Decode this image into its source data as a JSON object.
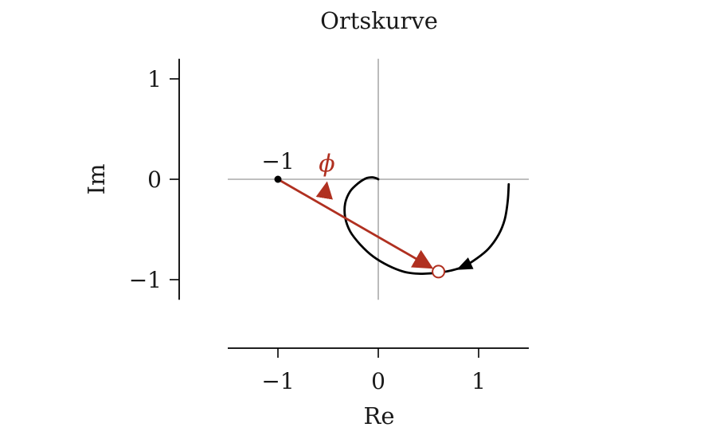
{
  "chart_data": {
    "type": "line",
    "title": "Ortskurve",
    "xlabel": "Re",
    "ylabel": "Im",
    "xlim": [
      -1.5,
      1.5
    ],
    "ylim": [
      -1.2,
      1.2
    ],
    "xticks": [
      -1,
      0,
      1
    ],
    "xtick_labels": [
      "−1",
      "0",
      "1"
    ],
    "yticks": [
      -1,
      0,
      1
    ],
    "ytick_labels": [
      "−1",
      "0",
      "1"
    ],
    "grid": false,
    "series": [
      {
        "curve": "nyquist",
        "x": [
          1.3,
          1.29,
          1.26,
          1.2,
          1.1,
          0.98,
          0.85,
          0.72,
          0.6,
          0.48,
          0.38,
          0.25,
          0.1,
          -0.05,
          -0.18,
          -0.28,
          -0.33,
          -0.33,
          -0.28,
          -0.2,
          -0.12,
          -0.06,
          -0.02,
          0.0
        ],
        "y": [
          -0.05,
          -0.22,
          -0.4,
          -0.55,
          -0.69,
          -0.79,
          -0.87,
          -0.91,
          -0.93,
          -0.94,
          -0.94,
          -0.92,
          -0.86,
          -0.77,
          -0.65,
          -0.52,
          -0.38,
          -0.24,
          -0.12,
          -0.04,
          0.01,
          0.02,
          0.01,
          0.0
        ],
        "color": "#000000",
        "direction_arrow_at_index": 6
      }
    ],
    "annotations": [
      {
        "point": [
          -1,
          0
        ],
        "label": "−1",
        "color": "#000000"
      },
      {
        "phasor_from": [
          -1,
          0
        ],
        "phasor_to": [
          0.6,
          -0.92
        ],
        "color": "#b03020",
        "marker": "open-circle"
      },
      {
        "angle_label": "ϕ",
        "at": [
          -0.52,
          -0.1
        ],
        "color": "#b03020"
      }
    ]
  }
}
